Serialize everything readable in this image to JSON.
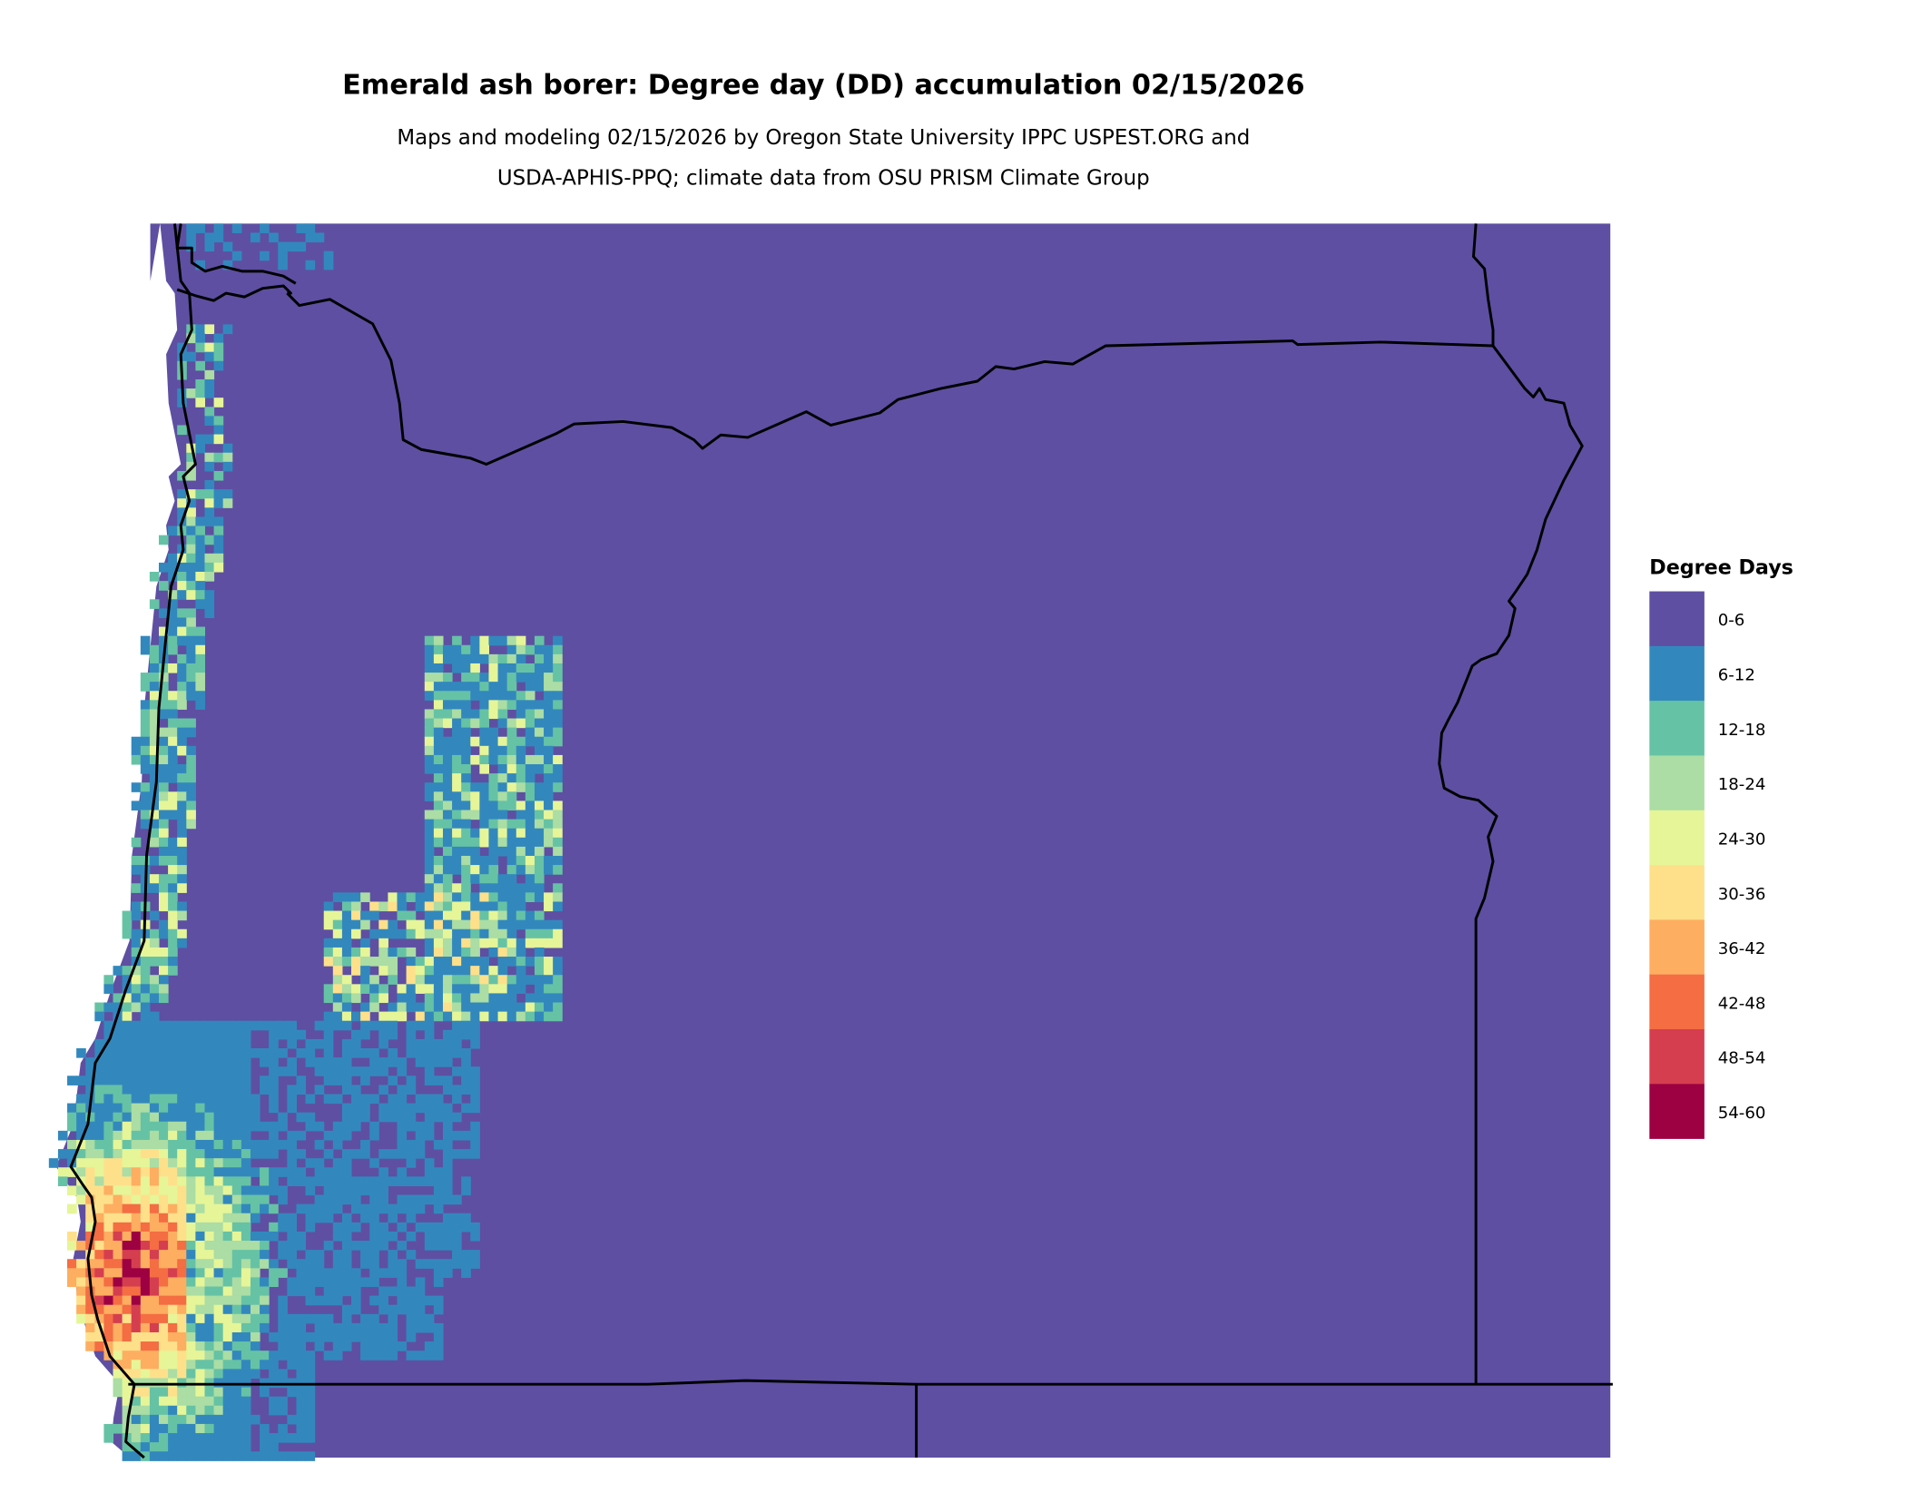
{
  "title": "Emerald ash borer: Degree day (DD) accumulation 02/15/2026",
  "subtitle_lines": [
    "Maps and modeling 02/15/2026 by Oregon State University IPPC USPEST.ORG and",
    "USDA-APHIS-PPQ; climate data from OSU PRISM Climate Group"
  ],
  "legend": {
    "title": "Degree Days",
    "items": [
      {
        "label": "0-6",
        "color": "#5e4fa2"
      },
      {
        "label": "6-12",
        "color": "#3288bd"
      },
      {
        "label": "12-18",
        "color": "#66c2a5"
      },
      {
        "label": "18-24",
        "color": "#abdda4"
      },
      {
        "label": "24-30",
        "color": "#e6f598"
      },
      {
        "label": "30-36",
        "color": "#fee08b"
      },
      {
        "label": "36-42",
        "color": "#fdae61"
      },
      {
        "label": "42-48",
        "color": "#f46d43"
      },
      {
        "label": "48-54",
        "color": "#d53e4f"
      },
      {
        "label": "54-60",
        "color": "#9e0142"
      }
    ]
  },
  "map": {
    "region": "Oregon",
    "boundary_color": "#000000",
    "pattern": "Mostly 0-6 DD statewide; higher accumulation (up to 54-60 DD) along the southwest coast and scattered 6-30 DD in the Willamette Valley and southwest interior"
  }
}
